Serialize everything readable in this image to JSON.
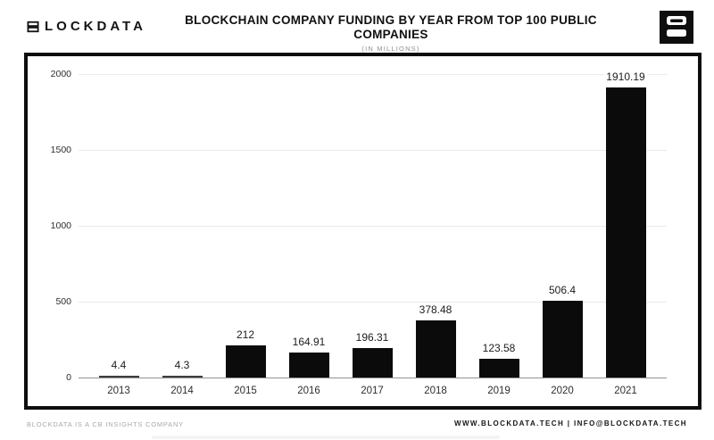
{
  "header": {
    "brand_text": "LOCKDATA",
    "brand_full": "BLOCKDATA",
    "title": "BLOCKCHAIN COMPANY FUNDING BY YEAR FROM TOP 100 PUBLIC COMPANIES",
    "subtitle": "(IN MILLIONS)"
  },
  "chart_data": {
    "type": "bar",
    "title": "BLOCKCHAIN COMPANY FUNDING BY YEAR FROM TOP 100 PUBLIC COMPANIES",
    "subtitle": "(IN MILLIONS)",
    "xlabel": "",
    "ylabel": "",
    "categories": [
      "2013",
      "2014",
      "2015",
      "2016",
      "2017",
      "2018",
      "2019",
      "2020",
      "2021"
    ],
    "values": [
      4.4,
      4.3,
      212,
      164.91,
      196.31,
      378.48,
      123.58,
      506.4,
      1910.19
    ],
    "value_labels": [
      "4.4",
      "4.3",
      "212",
      "164.91",
      "196.31",
      "378.48",
      "123.58",
      "506.4",
      "1910.19"
    ],
    "ylim": [
      0,
      2000
    ],
    "yticks": [
      2000,
      1500,
      1000,
      500,
      0
    ],
    "grid": true,
    "legend": "none",
    "bar_color": "#0b0b0b",
    "gridline_color": "#eaeaea",
    "axis_line_color": "#929292"
  },
  "footer": {
    "left": "BLOCKDATA IS A CB INSIGHTS COMPANY",
    "right": "WWW.BLOCKDATA.TECH | INFO@BLOCKDATA.TECH"
  }
}
